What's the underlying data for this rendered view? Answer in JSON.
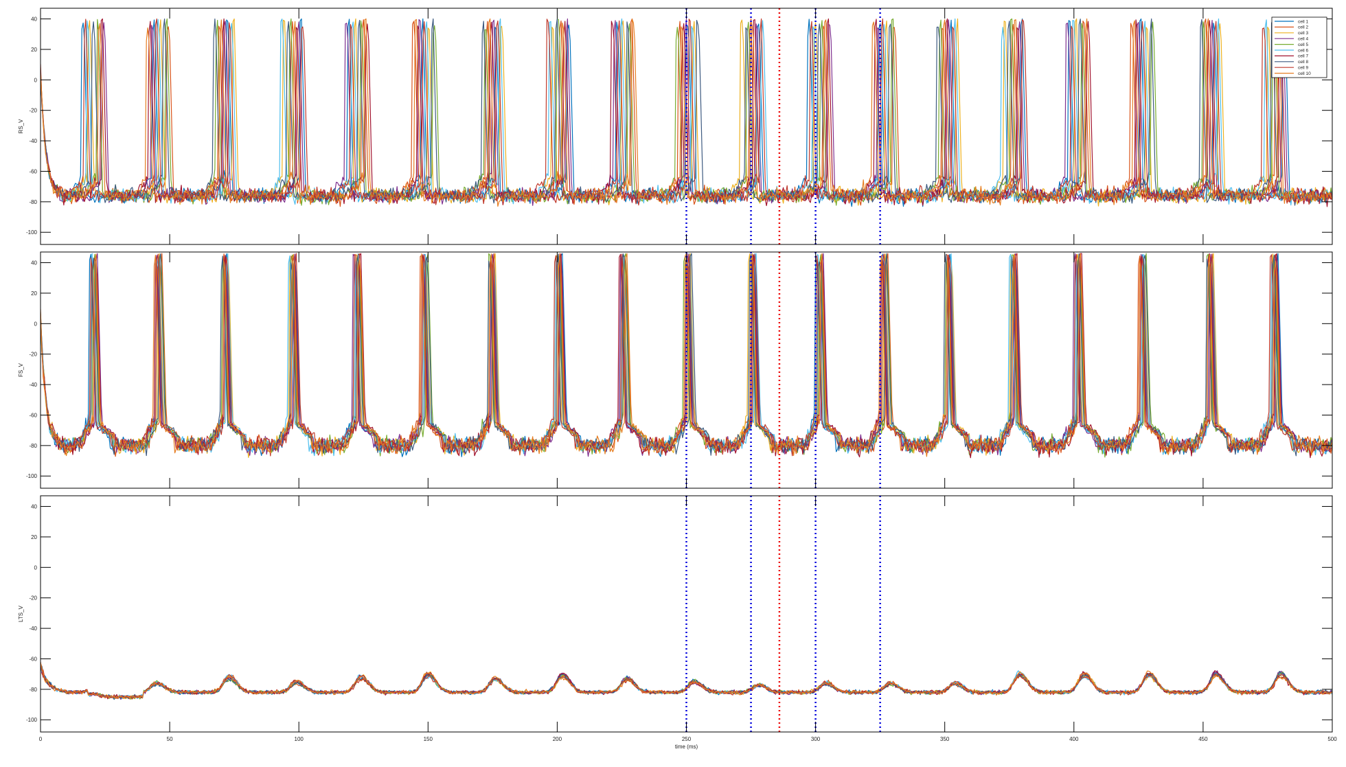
{
  "chart_data": [
    {
      "type": "line",
      "ylabel": "RS_V",
      "xlim": [
        0,
        500
      ],
      "ylim": [
        -108,
        47
      ],
      "yticks": [
        40,
        20,
        0,
        -20,
        -40,
        -60,
        -80,
        -100
      ],
      "baseline": -76,
      "noise": 4.5,
      "spike_peak": 40,
      "spike_trough": -80,
      "bump_height": 5,
      "spike_times": [
        20,
        45,
        71,
        97,
        122,
        148,
        174,
        200,
        225,
        250,
        275,
        301,
        326,
        351,
        376,
        401,
        426,
        452,
        477
      ],
      "spread": 4,
      "legend": [
        "cell 1",
        "cell 2",
        "cell 3",
        "cell 4",
        "cell 5",
        "cell 6",
        "cell 7",
        "cell 8",
        "cell 9",
        "cell 10"
      ]
    },
    {
      "type": "line",
      "ylabel": "FS_V",
      "xlim": [
        0,
        500
      ],
      "ylim": [
        -108,
        47
      ],
      "yticks": [
        40,
        20,
        0,
        -20,
        -40,
        -60,
        -80,
        -100
      ],
      "baseline": -80,
      "noise": 5,
      "spike_peak": 46,
      "spike_trough": -66,
      "bump_height": 0,
      "spike_times": [
        20,
        45,
        71,
        97,
        122,
        148,
        174,
        200,
        225,
        250,
        275,
        301,
        326,
        351,
        376,
        401,
        426,
        452,
        477
      ],
      "spread": 1.2
    },
    {
      "type": "line",
      "ylabel": "LTS_V",
      "xlabel": "time (ms)",
      "xlim": [
        0,
        500
      ],
      "ylim": [
        -108,
        47
      ],
      "yticks": [
        40,
        20,
        0,
        -20,
        -40,
        -60,
        -80,
        -100
      ],
      "baseline": -82,
      "noise": 1.2,
      "spike_peak": null,
      "bump_times": [
        20,
        45,
        73,
        99,
        124,
        150,
        176,
        202,
        227,
        253,
        278,
        304,
        329,
        354,
        379,
        404,
        429,
        455,
        480
      ],
      "bump_heights": [
        2,
        6,
        10,
        7,
        10,
        12,
        9,
        11,
        9,
        7,
        5,
        6,
        6,
        6,
        12,
        12,
        12,
        12,
        12
      ]
    }
  ],
  "xticks": [
    0,
    50,
    100,
    150,
    200,
    250,
    300,
    350,
    400,
    450,
    500
  ],
  "markers": {
    "blue_times": [
      250,
      275,
      300,
      325
    ],
    "red_times": [
      286
    ],
    "blue_color": "#0000dd",
    "red_color": "#ee0000"
  },
  "series_colors": [
    "#0072BD",
    "#D95319",
    "#EDB120",
    "#7E2F8E",
    "#77AC30",
    "#4DBEEE",
    "#A2142F",
    "#3d5a80",
    "#c0392b",
    "#e67e22"
  ]
}
